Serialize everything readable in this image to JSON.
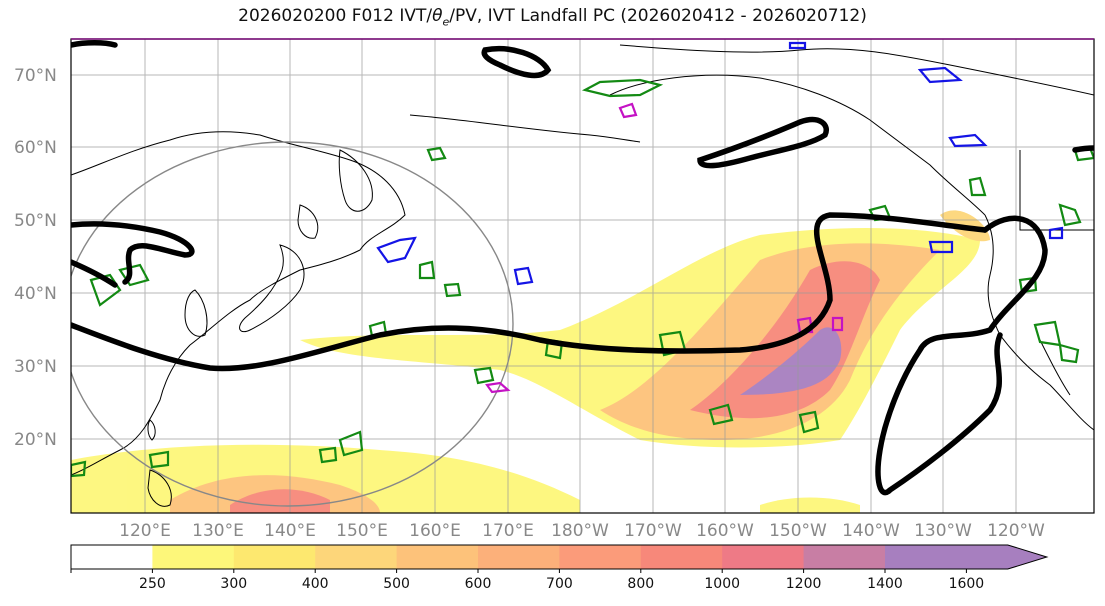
{
  "title": "2026020200 F012 IVT/θe/PV, IVT Landfall PC (2026020412 - 2026020712)",
  "title_prefix": "2026020200 F012 IVT/",
  "title_theta": "θ",
  "title_sub": "e",
  "title_suffix": "/PV, IVT Landfall PC (2026020412 - 2026020712)",
  "lat_labels": [
    "70°N",
    "60°N",
    "50°N",
    "40°N",
    "30°N",
    "20°N"
  ],
  "lon_labels": [
    "120°E",
    "130°E",
    "140°E",
    "150°E",
    "160°E",
    "170°E",
    "180°W",
    "170°W",
    "160°W",
    "150°W",
    "140°W",
    "130°W",
    "120°W"
  ],
  "colorbar": {
    "ticks": [
      "250",
      "300",
      "400",
      "500",
      "600",
      "700",
      "800",
      "1000",
      "1200",
      "1400",
      "1600"
    ],
    "colors": [
      "#ffffff",
      "#fdf77a",
      "#fde86f",
      "#fdd67a",
      "#fdc27a",
      "#fcb07a",
      "#fb9b7a",
      "#f7887a",
      "#ee7a86",
      "#c87ea4",
      "#a77fbf",
      "#a77fbf"
    ]
  },
  "colors": {
    "ivt_contour": "#000000",
    "pv_green": "#138a13",
    "pv_blue": "#1414e6",
    "pv_magenta": "#c412c4",
    "landfall_circle": "#888888"
  }
}
